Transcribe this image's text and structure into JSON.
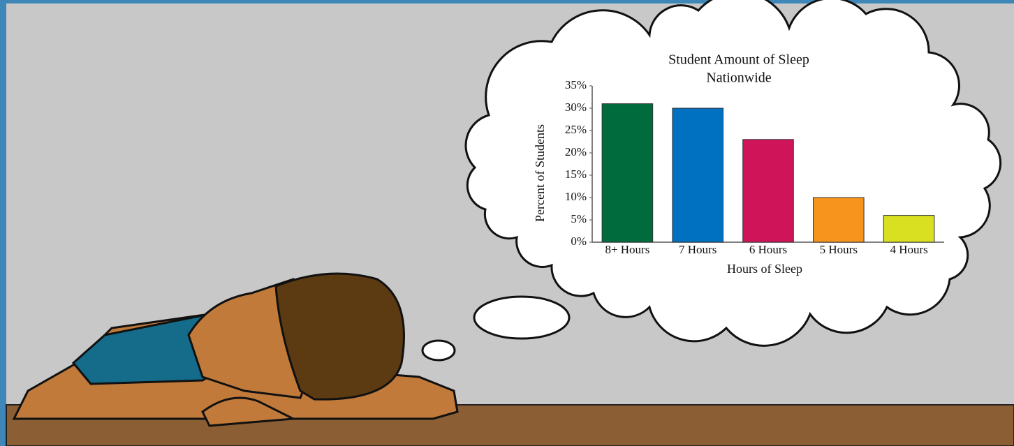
{
  "chart_data": {
    "type": "bar",
    "title": [
      "Student Amount of Sleep",
      "Nationwide"
    ],
    "x_label": "Hours of Sleep",
    "y_label": "Percent of Students",
    "categories": [
      "8+ Hours",
      "7 Hours",
      "6 Hours",
      "5 Hours",
      "4 Hours"
    ],
    "values": [
      31,
      30,
      23,
      10,
      6
    ],
    "colors": [
      "#006b3c",
      "#0070c0",
      "#d0145a",
      "#f7941d",
      "#d9e021"
    ],
    "ylim": [
      0,
      35
    ],
    "yticks": [
      {
        "value": 0,
        "label": "0%"
      },
      {
        "value": 5,
        "label": "5%"
      },
      {
        "value": 10,
        "label": "10%"
      },
      {
        "value": 15,
        "label": "15%"
      },
      {
        "value": 20,
        "label": "20%"
      },
      {
        "value": 25,
        "label": "25%"
      },
      {
        "value": 30,
        "label": "30%"
      },
      {
        "value": 35,
        "label": "35%"
      }
    ],
    "grid": false
  }
}
